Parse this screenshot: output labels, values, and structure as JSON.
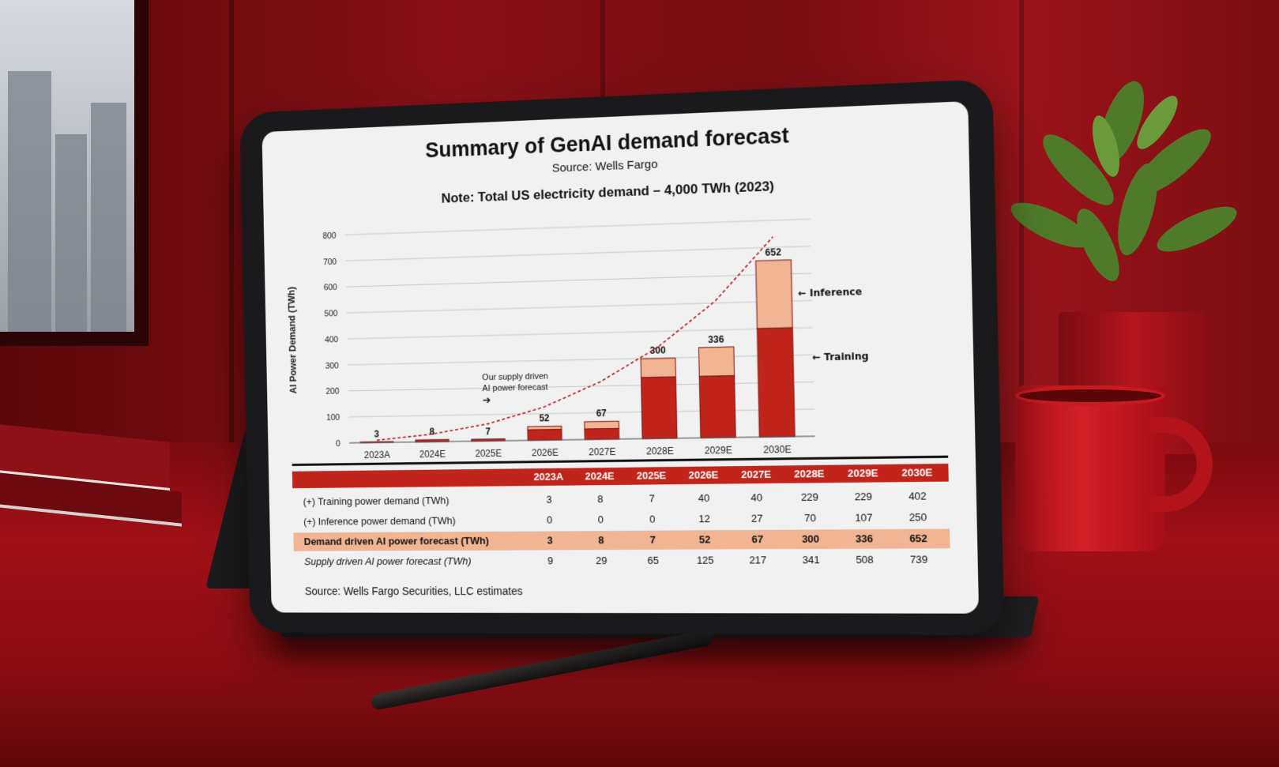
{
  "page": {
    "title": "Summary of GenAI demand forecast",
    "source": "Source: Wells Fargo",
    "note": "Note: Total US electricity demand – 4,000 TWh (2023)"
  },
  "chart_data": {
    "type": "bar",
    "stacked": true,
    "title": "Summary of GenAI demand forecast",
    "ylabel": "AI Power Demand (TWh)",
    "xlabel": "",
    "ylim": [
      0,
      800
    ],
    "yticks": [
      0,
      100,
      200,
      300,
      400,
      500,
      600,
      700,
      800
    ],
    "grid": true,
    "categories": [
      "2023A",
      "2024E",
      "2025E",
      "2026E",
      "2027E",
      "2028E",
      "2029E",
      "2030E"
    ],
    "series": [
      {
        "name": "Training",
        "color": "#c0241b",
        "values": [
          3,
          8,
          7,
          40,
          40,
          229,
          229,
          402
        ]
      },
      {
        "name": "Inference",
        "color": "#f1b593",
        "values": [
          0,
          0,
          0,
          12,
          27,
          70,
          107,
          250
        ]
      }
    ],
    "totals": [
      3,
      8,
      7,
      52,
      67,
      300,
      336,
      652
    ],
    "trend_line": {
      "label": "Our supply driven AI power forecast",
      "values": [
        9,
        29,
        65,
        125,
        217,
        341,
        508,
        739
      ]
    },
    "annotations": [
      "Our supply driven AI power forecast",
      "Inference",
      "Training"
    ]
  },
  "table": {
    "headers": [
      "2023A",
      "2024E",
      "2025E",
      "2026E",
      "2027E",
      "2028E",
      "2029E",
      "2030E"
    ],
    "rows": [
      {
        "label": "(+) Training power demand (TWh)",
        "values": [
          "3",
          "8",
          "7",
          "40",
          "40",
          "229",
          "229",
          "402"
        ]
      },
      {
        "label": "(+) Inference power demand (TWh)",
        "values": [
          "0",
          "0",
          "0",
          "12",
          "27",
          "70",
          "107",
          "250"
        ]
      },
      {
        "label": "Demand driven AI power forecast (TWh)",
        "values": [
          "3",
          "8",
          "7",
          "52",
          "67",
          "300",
          "336",
          "652"
        ]
      },
      {
        "label": "Supply driven AI power forecast (TWh)",
        "values": [
          "9",
          "29",
          "65",
          "125",
          "217",
          "341",
          "508",
          "739"
        ]
      }
    ],
    "footnote": "Source: Wells Fargo Securities, LLC estimates"
  },
  "colors": {
    "accent": "#c0241b",
    "highlight": "#f1b593",
    "background": "#8a1016"
  }
}
